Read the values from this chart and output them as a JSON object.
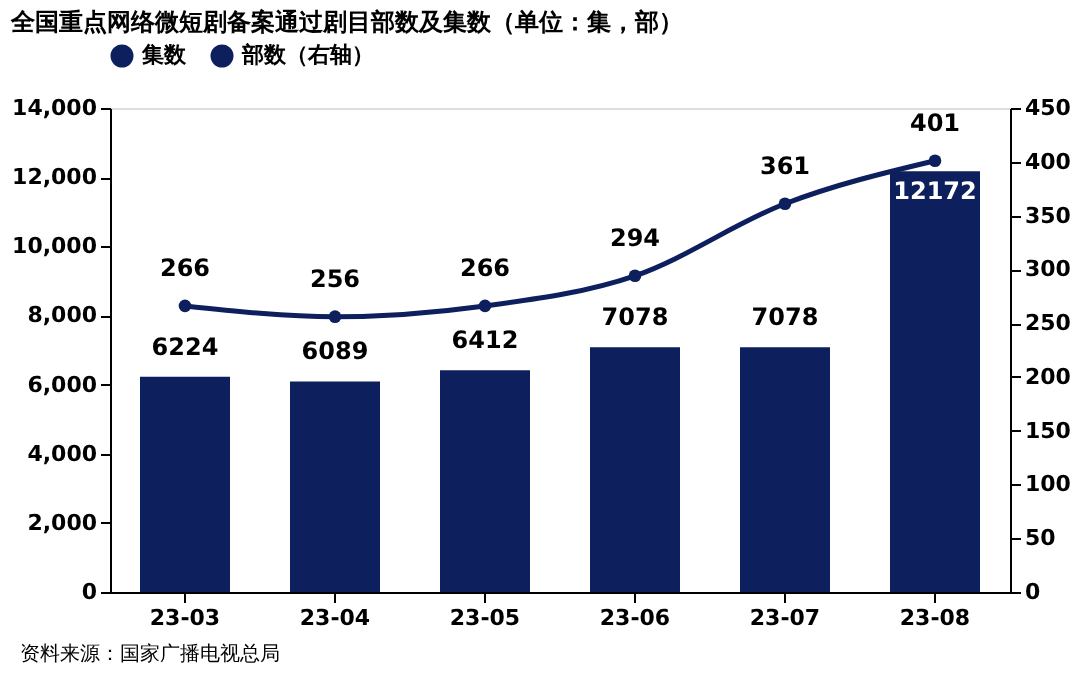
{
  "chart_data": {
    "type": "bar",
    "title": "全国重点网络微短剧备案通过剧目部数及集数（单位：集，部）",
    "categories": [
      "23-03",
      "23-04",
      "23-05",
      "23-06",
      "23-07",
      "23-08"
    ],
    "series": [
      {
        "name": "集数",
        "color": "#0d1f5c",
        "values": [
          6224,
          6089,
          6412,
          7078,
          7078,
          12172
        ]
      },
      {
        "name": "部数（右轴）",
        "type": "line",
        "axis": "y2",
        "color": "#0d1f5c",
        "values": [
          266,
          256,
          266,
          294,
          361,
          401
        ]
      }
    ],
    "ylim": [
      0,
      14000
    ],
    "yticks": [
      0,
      {
        "value": 2000,
        "label": "2,000"
      },
      {
        "value": 4000,
        "label": "4,000"
      },
      {
        "value": 6000,
        "label": "6,000"
      },
      {
        "value": 8000,
        "label": "8,000"
      },
      {
        "value": 10000,
        "label": "10,000"
      },
      {
        "value": 12000,
        "label": "12,000"
      },
      {
        "value": 14000,
        "label": "14,000"
      }
    ],
    "y2lim": [
      0,
      450
    ],
    "y2ticks": [
      0,
      50,
      100,
      150,
      200,
      250,
      300,
      350,
      400,
      450
    ],
    "data_labels": true,
    "marker": "circle",
    "line_style": "solid",
    "grid": false,
    "legend": "top",
    "annotations": [
      "资料来源：国家广播电视总局"
    ]
  }
}
